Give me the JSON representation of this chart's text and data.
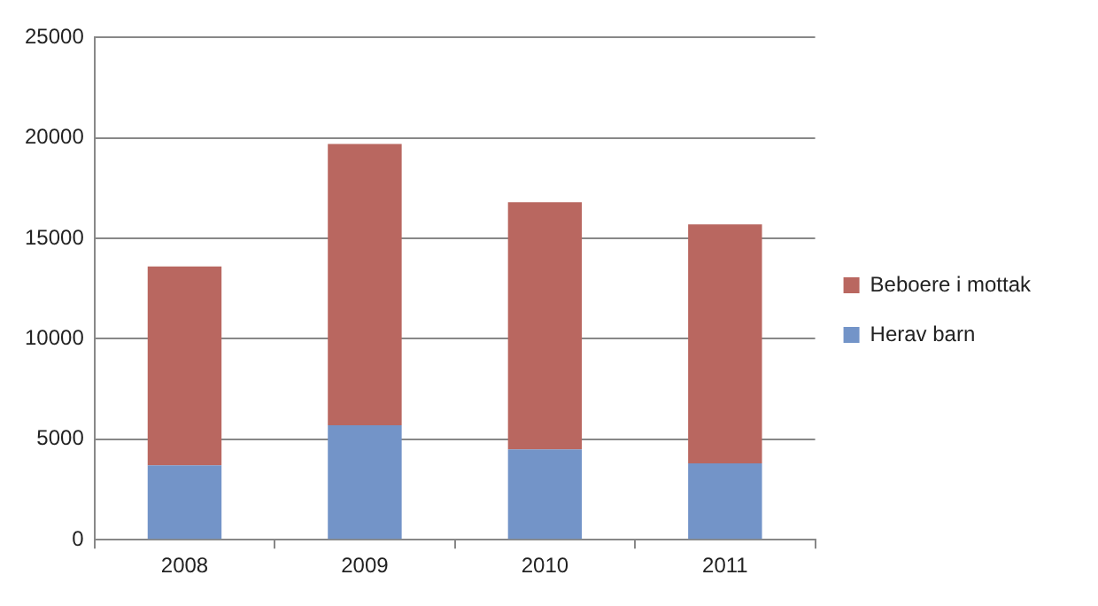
{
  "chart_data": {
    "type": "bar",
    "stacked": true,
    "categories": [
      "2008",
      "2009",
      "2010",
      "2011"
    ],
    "series": [
      {
        "name": "Herav barn",
        "color": "#7394c8",
        "values": [
          3700,
          5700,
          4500,
          3800
        ]
      },
      {
        "name": "Beboere i mottak",
        "color": "#b96760",
        "values": [
          9900,
          14000,
          12300,
          11900
        ]
      }
    ],
    "ylim": [
      0,
      25000
    ],
    "yticks": [
      0,
      5000,
      10000,
      15000,
      20000,
      25000
    ],
    "grid": "y",
    "legend": "right"
  }
}
